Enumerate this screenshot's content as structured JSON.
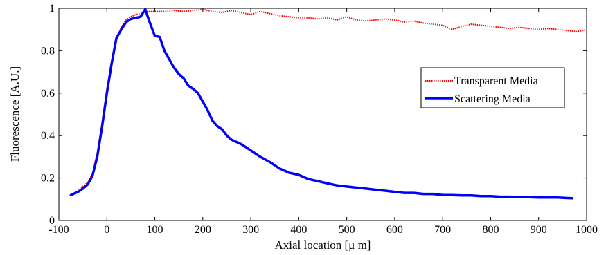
{
  "chart_data": {
    "type": "line",
    "title": "",
    "xlabel": "Axial location [μ m]",
    "ylabel": "Fluorescence [A.U.]",
    "xlim": [
      -100,
      1000
    ],
    "ylim": [
      0,
      1
    ],
    "xticks": [
      "-100",
      "0",
      "100",
      "200",
      "300",
      "400",
      "500",
      "600",
      "700",
      "800",
      "900",
      "1000"
    ],
    "yticks": [
      "0",
      "0.2",
      "0.4",
      "0.6",
      "0.8",
      "1"
    ],
    "grid": false,
    "legend_position": "right",
    "series": [
      {
        "name": "Transparent Media",
        "color": "#ff0000",
        "style": "dotted",
        "x": [
          -75,
          -60,
          -50,
          -40,
          -30,
          -20,
          -10,
          0,
          10,
          20,
          30,
          40,
          50,
          60,
          70,
          80,
          90,
          100,
          120,
          140,
          160,
          180,
          200,
          220,
          240,
          260,
          280,
          300,
          320,
          340,
          360,
          380,
          400,
          420,
          440,
          460,
          480,
          500,
          520,
          540,
          560,
          580,
          600,
          620,
          640,
          660,
          680,
          700,
          720,
          740,
          760,
          780,
          800,
          820,
          840,
          860,
          880,
          900,
          920,
          940,
          960,
          980,
          1000
        ],
        "y": [
          0.12,
          0.14,
          0.16,
          0.18,
          0.22,
          0.32,
          0.46,
          0.62,
          0.75,
          0.85,
          0.91,
          0.945,
          0.96,
          0.97,
          0.975,
          0.98,
          0.985,
          0.985,
          0.985,
          0.99,
          0.985,
          0.99,
          0.995,
          0.985,
          0.98,
          0.99,
          0.98,
          0.97,
          0.985,
          0.975,
          0.965,
          0.96,
          0.955,
          0.955,
          0.95,
          0.955,
          0.945,
          0.96,
          0.945,
          0.94,
          0.945,
          0.95,
          0.945,
          0.935,
          0.94,
          0.93,
          0.925,
          0.92,
          0.9,
          0.915,
          0.925,
          0.92,
          0.915,
          0.91,
          0.905,
          0.91,
          0.905,
          0.9,
          0.905,
          0.9,
          0.895,
          0.89,
          0.9
        ]
      },
      {
        "name": "Scattering Media",
        "color": "#0000ff",
        "style": "solid",
        "x": [
          -75,
          -60,
          -50,
          -40,
          -30,
          -20,
          -10,
          0,
          10,
          20,
          30,
          40,
          50,
          60,
          70,
          80,
          90,
          100,
          110,
          120,
          130,
          140,
          150,
          160,
          170,
          180,
          190,
          200,
          210,
          220,
          230,
          240,
          250,
          260,
          270,
          280,
          290,
          300,
          320,
          340,
          360,
          380,
          400,
          420,
          440,
          460,
          480,
          500,
          520,
          540,
          560,
          580,
          600,
          620,
          640,
          660,
          680,
          700,
          720,
          740,
          760,
          780,
          800,
          820,
          840,
          860,
          880,
          900,
          920,
          940,
          960,
          970
        ],
        "y": [
          0.12,
          0.135,
          0.15,
          0.17,
          0.21,
          0.3,
          0.44,
          0.6,
          0.74,
          0.86,
          0.9,
          0.935,
          0.95,
          0.955,
          0.96,
          0.995,
          0.93,
          0.87,
          0.865,
          0.8,
          0.76,
          0.72,
          0.69,
          0.67,
          0.635,
          0.62,
          0.6,
          0.56,
          0.52,
          0.47,
          0.445,
          0.43,
          0.4,
          0.38,
          0.37,
          0.36,
          0.345,
          0.33,
          0.3,
          0.275,
          0.245,
          0.225,
          0.215,
          0.195,
          0.185,
          0.175,
          0.165,
          0.16,
          0.155,
          0.15,
          0.145,
          0.14,
          0.135,
          0.13,
          0.13,
          0.125,
          0.125,
          0.12,
          0.12,
          0.118,
          0.118,
          0.115,
          0.115,
          0.112,
          0.112,
          0.11,
          0.11,
          0.108,
          0.108,
          0.108,
          0.106,
          0.105
        ]
      }
    ]
  }
}
